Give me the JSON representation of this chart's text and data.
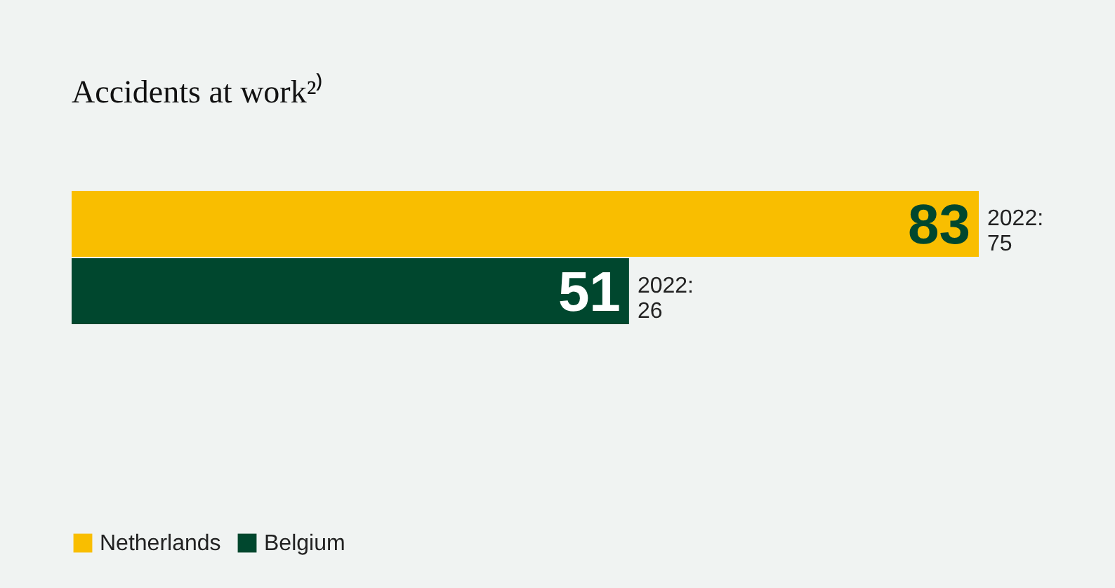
{
  "chart_data": {
    "type": "bar",
    "orientation": "horizontal",
    "title": "Accidents at work²⁾",
    "categories": [
      null
    ],
    "series": [
      {
        "name": "Netherlands",
        "color": "#f9be00",
        "values": [
          83
        ]
      },
      {
        "name": "Belgium",
        "color": "#00472e",
        "values": [
          51
        ]
      }
    ],
    "data_labels": true,
    "legend": "bottom left",
    "annotations": [
      "2022: 75",
      "2022: 26"
    ]
  }
}
